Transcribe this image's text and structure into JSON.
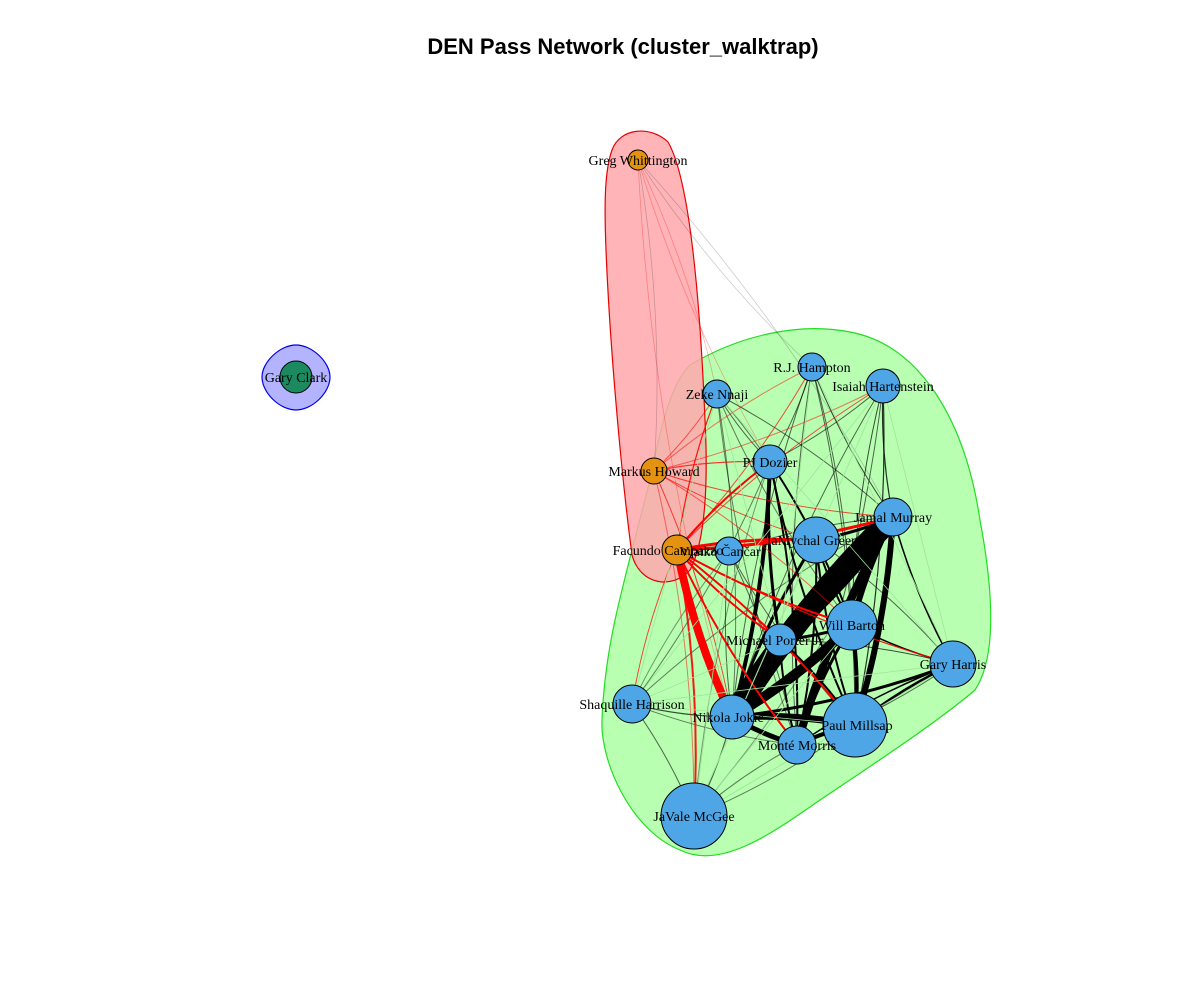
{
  "title": "DEN Pass Network (cluster_walktrap)",
  "colors": {
    "blue_node": "#4ea6e6",
    "orange_node": "#e4920f",
    "green_node": "#1c8a60",
    "hull_red_fill": "#ffb3b6",
    "hull_red_stroke": "#e60000",
    "hull_green_fill": "#b8ffb2",
    "hull_green_stroke": "#22dd22",
    "hull_blue_fill": "#b3b3ff",
    "hull_blue_stroke": "#0000ee",
    "edge_black": "#000000",
    "edge_red": "#ff0000"
  },
  "nodes": [
    {
      "id": "greg",
      "label": "Greg Whittington",
      "group": "orange"
    },
    {
      "id": "gary_c",
      "label": "Gary Clark",
      "group": "green"
    },
    {
      "id": "rj",
      "label": "R.J. Hampton",
      "group": "blue"
    },
    {
      "id": "isaiah",
      "label": "Isaiah Hartenstein",
      "group": "blue"
    },
    {
      "id": "zeke",
      "label": "Zeke Nnaji",
      "group": "blue"
    },
    {
      "id": "markus",
      "label": "Markus Howard",
      "group": "orange"
    },
    {
      "id": "pj",
      "label": "PJ Dozier",
      "group": "blue"
    },
    {
      "id": "jamal",
      "label": "Jamal Murray",
      "group": "blue"
    },
    {
      "id": "facundo",
      "label": "Facundo Campazzo",
      "group": "orange"
    },
    {
      "id": "vlatko",
      "label": "Vlatko Čančar",
      "group": "blue"
    },
    {
      "id": "jamychal",
      "label": "JaMychal Green",
      "group": "blue"
    },
    {
      "id": "will",
      "label": "Will Barton",
      "group": "blue"
    },
    {
      "id": "michael",
      "label": "Michael Porter Jr.",
      "group": "blue"
    },
    {
      "id": "gary_h",
      "label": "Gary Harris",
      "group": "blue"
    },
    {
      "id": "shaq",
      "label": "Shaquille Harrison",
      "group": "blue"
    },
    {
      "id": "nikola",
      "label": "Nikola Jokić",
      "group": "blue"
    },
    {
      "id": "paul",
      "label": "Paul Millsap",
      "group": "blue"
    },
    {
      "id": "monte",
      "label": "Monté Morris",
      "group": "blue"
    },
    {
      "id": "javale",
      "label": "JaVale McGee",
      "group": "blue"
    }
  ]
}
